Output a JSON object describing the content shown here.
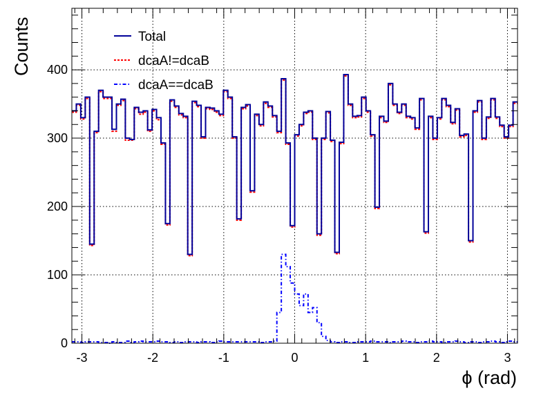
{
  "chart_data": {
    "type": "line",
    "title": "",
    "xlabel": "ϕ (rad)",
    "ylabel": "Counts",
    "xlim": [
      -3.1416,
      3.1416
    ],
    "ylim": [
      0,
      490
    ],
    "x_ticks": [
      -3,
      -2,
      -1,
      0,
      1,
      2,
      3
    ],
    "y_ticks": [
      0,
      100,
      200,
      300,
      400
    ],
    "grid": true,
    "legend_position": "top-left",
    "bins": 100,
    "series": [
      {
        "name": "Total",
        "color": "#000099",
        "dash": "solid",
        "values": [
          340,
          350,
          330,
          360,
          145,
          310,
          370,
          360,
          360,
          313,
          350,
          357,
          300,
          298,
          345,
          338,
          340,
          312,
          342,
          330,
          293,
          175,
          356,
          347,
          336,
          332,
          130,
          354,
          348,
          302,
          345,
          344,
          340,
          335,
          370,
          360,
          302,
          182,
          345,
          349,
          223,
          335,
          320,
          353,
          347,
          333,
          310,
          387,
          293,
          172,
          305,
          320,
          338,
          340,
          300,
          160,
          300,
          339,
          297,
          133,
          294,
          393,
          350,
          332,
          333,
          360,
          340,
          305,
          199,
          332,
          325,
          380,
          350,
          338,
          350,
          332,
          330,
          315,
          358,
          163,
          332,
          300,
          330,
          358,
          348,
          323,
          343,
          304,
          306,
          150,
          340,
          355,
          300,
          331,
          358,
          331,
          319,
          302,
          319,
          353
        ]
      },
      {
        "name": "dcaA!=dcaB",
        "color": "#ff0000",
        "dash": "dotted",
        "values": [
          338,
          348,
          328,
          358,
          143,
          308,
          368,
          358,
          358,
          310,
          348,
          355,
          297,
          297,
          343,
          335,
          338,
          310,
          340,
          327,
          291,
          173,
          354,
          345,
          334,
          330,
          128,
          352,
          346,
          300,
          343,
          342,
          338,
          333,
          368,
          358,
          300,
          180,
          343,
          347,
          221,
          333,
          318,
          351,
          345,
          331,
          308,
          385,
          291,
          170,
          303,
          318,
          336,
          338,
          298,
          158,
          298,
          337,
          295,
          131,
          292,
          391,
          348,
          330,
          331,
          358,
          338,
          303,
          197,
          330,
          323,
          378,
          348,
          336,
          348,
          330,
          328,
          313,
          356,
          161,
          330,
          298,
          328,
          356,
          346,
          321,
          341,
          302,
          304,
          148,
          338,
          353,
          298,
          329,
          356,
          329,
          317,
          300,
          317,
          351
        ]
      },
      {
        "name": "dcaA==dcaB",
        "color": "#0000ff",
        "dash": "dash-dot",
        "values": [
          2,
          2,
          1,
          2,
          2,
          2,
          1,
          1,
          0,
          2,
          1,
          1,
          3,
          1,
          2,
          3,
          2,
          2,
          2,
          3,
          2,
          2,
          1,
          2,
          1,
          2,
          2,
          2,
          1,
          2,
          2,
          1,
          2,
          3,
          2,
          2,
          2,
          2,
          2,
          2,
          2,
          2,
          1,
          2,
          2,
          3,
          45,
          130,
          112,
          88,
          72,
          55,
          72,
          45,
          52,
          30,
          10,
          4,
          2,
          1,
          2,
          2,
          1,
          1,
          2,
          2,
          2,
          3,
          2,
          2,
          2,
          1,
          2,
          2,
          3,
          2,
          2,
          1,
          2,
          2,
          3,
          2,
          2,
          1,
          2,
          2,
          3,
          2,
          1,
          2,
          2,
          1,
          2,
          2,
          3,
          2,
          1,
          2,
          3,
          2
        ]
      }
    ]
  }
}
